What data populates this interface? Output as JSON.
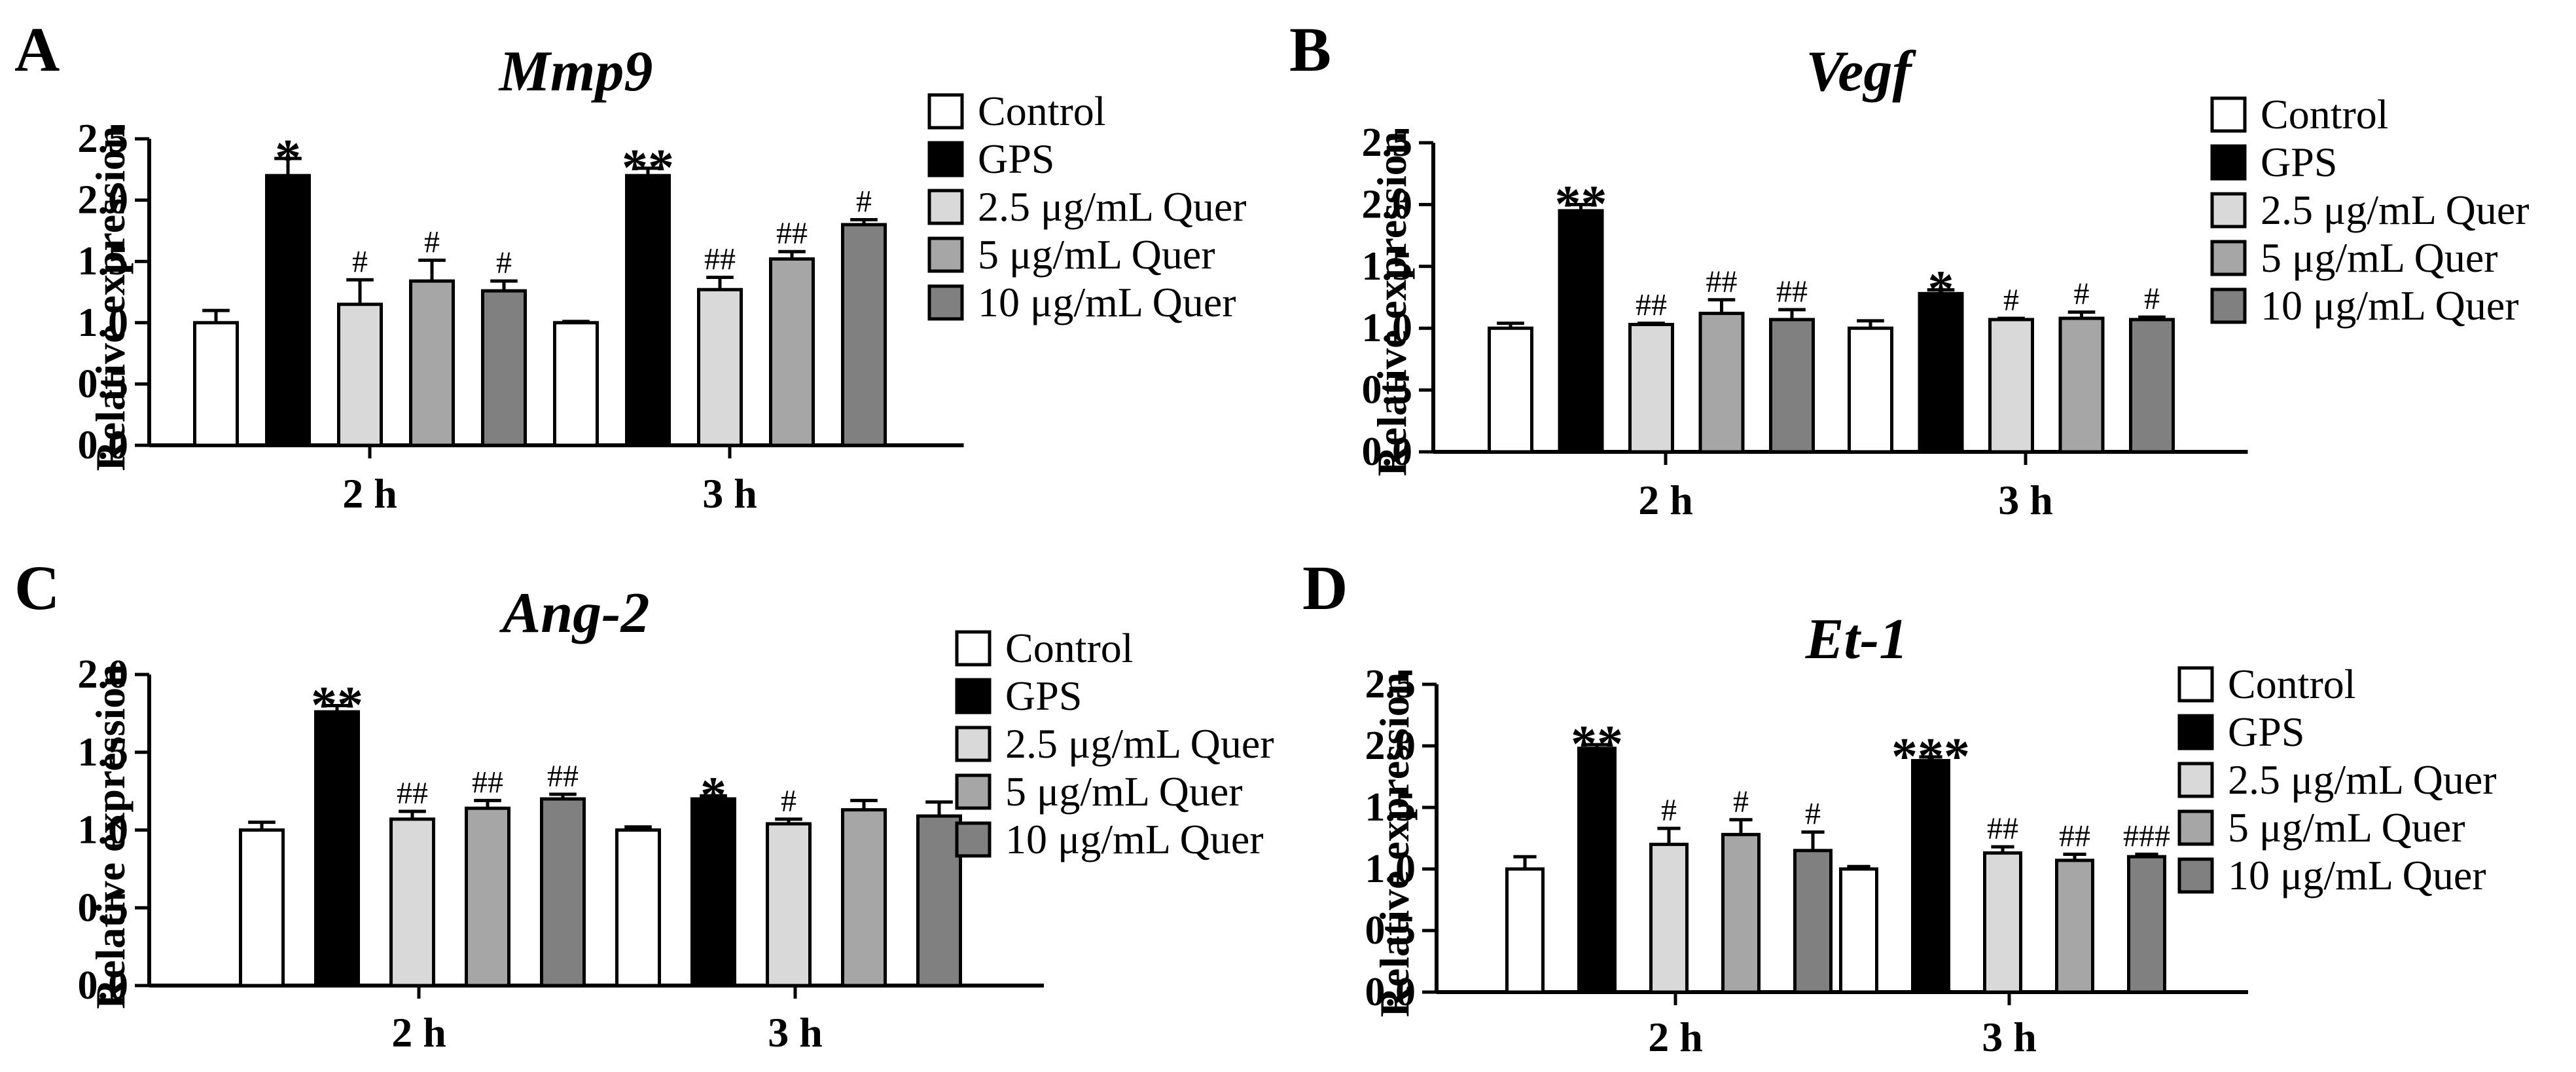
{
  "legend": [
    {
      "label": "Control",
      "color": "#ffffff"
    },
    {
      "label": "GPS",
      "color": "#000000"
    },
    {
      "label": "2.5 μg/mL Quer",
      "color": "#d9d9d9"
    },
    {
      "label": "5 μg/mL Quer",
      "color": "#a6a6a6"
    },
    {
      "label": "10 μg/mL Quer",
      "color": "#808080"
    }
  ],
  "chart_data": [
    {
      "type": "bar",
      "panel": "A",
      "title": "Mmp9",
      "xlabel": "",
      "ylabel": "Relative expression",
      "ylim": [
        0,
        2.5
      ],
      "yticks": [
        "0.0",
        "0.5",
        "1.0",
        "1.5",
        "2.0",
        "2.5"
      ],
      "categories": [
        "2 h",
        "3 h"
      ],
      "series": [
        {
          "name": "Control",
          "values": [
            1.0,
            1.0
          ],
          "errors": [
            0.1,
            0.01
          ],
          "marks": [
            "",
            ""
          ]
        },
        {
          "name": "GPS",
          "values": [
            2.2,
            2.2
          ],
          "errors": [
            0.14,
            0.06
          ],
          "marks": [
            "*",
            "**"
          ]
        },
        {
          "name": "2.5 μg/mL Quer",
          "values": [
            1.15,
            1.27
          ],
          "errors": [
            0.2,
            0.1
          ],
          "marks": [
            "#",
            "##"
          ]
        },
        {
          "name": "5 μg/mL Quer",
          "values": [
            1.34,
            1.52
          ],
          "errors": [
            0.17,
            0.06
          ],
          "marks": [
            "#",
            "##"
          ]
        },
        {
          "name": "10 μg/mL Quer",
          "values": [
            1.26,
            1.8
          ],
          "errors": [
            0.08,
            0.04
          ],
          "marks": [
            "#",
            "#"
          ]
        }
      ]
    },
    {
      "type": "bar",
      "panel": "B",
      "title": "Vegf",
      "xlabel": "",
      "ylabel": "Relative expression",
      "ylim": [
        0,
        2.5
      ],
      "yticks": [
        "0.0",
        "0.5",
        "1.0",
        "1.5",
        "2.0",
        "2.5"
      ],
      "categories": [
        "2 h",
        "3 h"
      ],
      "series": [
        {
          "name": "Control",
          "values": [
            1.0,
            1.0
          ],
          "errors": [
            0.04,
            0.06
          ],
          "marks": [
            "",
            ""
          ]
        },
        {
          "name": "GPS",
          "values": [
            1.95,
            1.28
          ],
          "errors": [
            0.05,
            0.03
          ],
          "marks": [
            "**",
            "*"
          ]
        },
        {
          "name": "2.5 μg/mL Quer",
          "values": [
            1.03,
            1.07
          ],
          "errors": [
            0.01,
            0.01
          ],
          "marks": [
            "##",
            "#"
          ]
        },
        {
          "name": "5 μg/mL Quer",
          "values": [
            1.12,
            1.08
          ],
          "errors": [
            0.11,
            0.05
          ],
          "marks": [
            "##",
            "#"
          ]
        },
        {
          "name": "10 μg/mL Quer",
          "values": [
            1.07,
            1.07
          ],
          "errors": [
            0.08,
            0.02
          ],
          "marks": [
            "##",
            "#"
          ]
        }
      ]
    },
    {
      "type": "bar",
      "panel": "C",
      "title": "Ang-2",
      "xlabel": "",
      "ylabel": "Relative expression",
      "ylim": [
        0,
        2.0
      ],
      "yticks": [
        "0.0",
        "0.5",
        "1.0",
        "1.5",
        "2.0"
      ],
      "categories": [
        "2 h",
        "3 h"
      ],
      "series": [
        {
          "name": "Control",
          "values": [
            1.0,
            1.0
          ],
          "errors": [
            0.05,
            0.02
          ],
          "marks": [
            "",
            ""
          ]
        },
        {
          "name": "GPS",
          "values": [
            1.76,
            1.2
          ],
          "errors": [
            0.04,
            0.02
          ],
          "marks": [
            "**",
            "*"
          ]
        },
        {
          "name": "2.5 μg/mL Quer",
          "values": [
            1.07,
            1.04
          ],
          "errors": [
            0.05,
            0.03
          ],
          "marks": [
            "##",
            "#"
          ]
        },
        {
          "name": "5 μg/mL Quer",
          "values": [
            1.14,
            1.13
          ],
          "errors": [
            0.05,
            0.06
          ],
          "marks": [
            "##",
            ""
          ]
        },
        {
          "name": "10 μg/mL Quer",
          "values": [
            1.2,
            1.09
          ],
          "errors": [
            0.03,
            0.09
          ],
          "marks": [
            "##",
            ""
          ]
        }
      ]
    },
    {
      "type": "bar",
      "panel": "D",
      "title": "Et-1",
      "xlabel": "",
      "ylabel": "Relative expression",
      "ylim": [
        0,
        2.5
      ],
      "yticks": [
        "0.0",
        "0.5",
        "1.0",
        "1.5",
        "2.0",
        "2.5"
      ],
      "categories": [
        "2 h",
        "3 h"
      ],
      "series": [
        {
          "name": "Control",
          "values": [
            1.0,
            1.0
          ],
          "errors": [
            0.1,
            0.02
          ],
          "marks": [
            "",
            ""
          ]
        },
        {
          "name": "GPS",
          "values": [
            1.98,
            1.88
          ],
          "errors": [
            0.03,
            0.03
          ],
          "marks": [
            "**",
            "***"
          ]
        },
        {
          "name": "2.5 μg/mL Quer",
          "values": [
            1.2,
            1.13
          ],
          "errors": [
            0.13,
            0.05
          ],
          "marks": [
            "#",
            "##"
          ]
        },
        {
          "name": "5 μg/mL Quer",
          "values": [
            1.28,
            1.07
          ],
          "errors": [
            0.12,
            0.05
          ],
          "marks": [
            "#",
            "##"
          ]
        },
        {
          "name": "10 μg/mL Quer",
          "values": [
            1.15,
            1.1
          ],
          "errors": [
            0.15,
            0.02
          ],
          "marks": [
            "#",
            "###"
          ]
        }
      ]
    }
  ]
}
